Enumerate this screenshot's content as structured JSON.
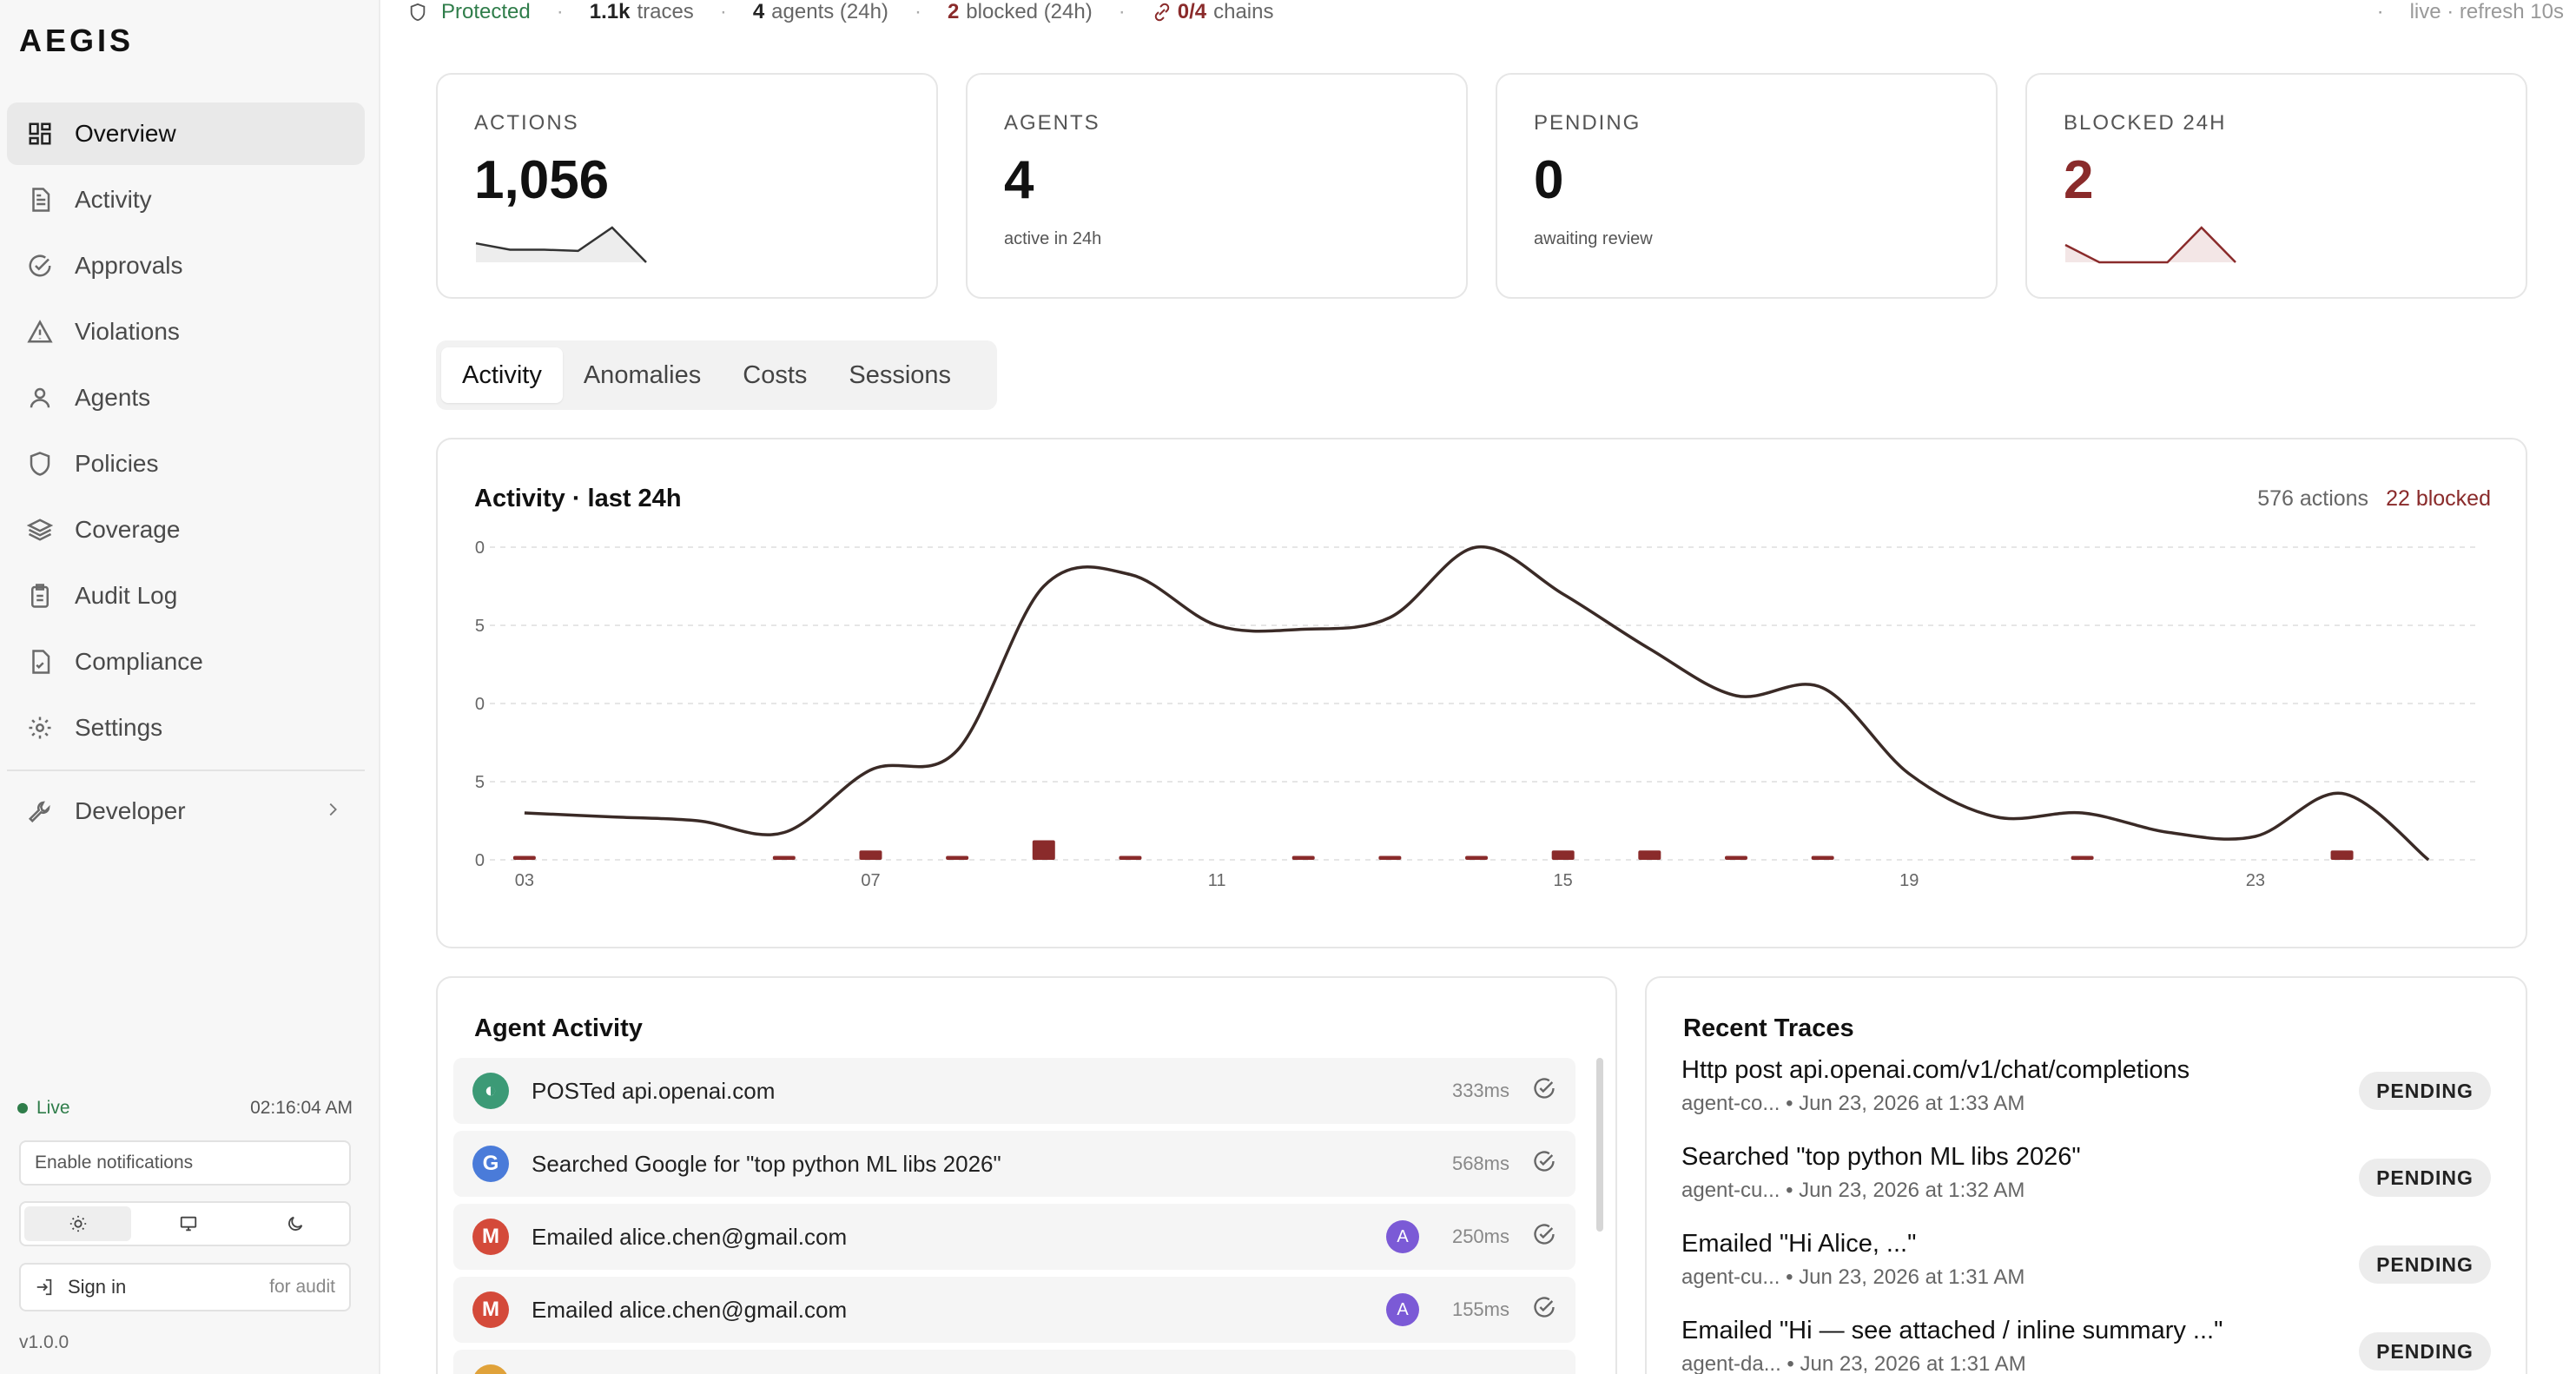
{
  "app": {
    "logo": "AEGIS",
    "version": "v1.0.0"
  },
  "sidebar": {
    "items": [
      {
        "label": "Overview",
        "icon": "grid-icon",
        "active": true
      },
      {
        "label": "Activity",
        "icon": "document-icon"
      },
      {
        "label": "Approvals",
        "icon": "check-circle-icon"
      },
      {
        "label": "Violations",
        "icon": "warning-icon"
      },
      {
        "label": "Agents",
        "icon": "user-icon"
      },
      {
        "label": "Policies",
        "icon": "shield-icon"
      },
      {
        "label": "Coverage",
        "icon": "layers-icon"
      },
      {
        "label": "Audit Log",
        "icon": "clipboard-icon"
      },
      {
        "label": "Compliance",
        "icon": "file-check-icon"
      },
      {
        "label": "Settings",
        "icon": "gear-icon"
      }
    ],
    "developer": {
      "label": "Developer",
      "icon": "wrench-icon"
    },
    "live_label": "Live",
    "clock": "02:16:04 AM",
    "notifications_label": "Enable notifications",
    "sign_in_label": "Sign in",
    "sign_in_hint": "for audit"
  },
  "statusbar": {
    "protected": "Protected",
    "traces_value": "1.1k",
    "traces_label": "traces",
    "agents_value": "4",
    "agents_label": "agents (24h)",
    "blocked_value": "2",
    "blocked_label": "blocked (24h)",
    "chains_value": "0/4",
    "chains_label": "chains",
    "refresh": "live · refresh 10s"
  },
  "stats": [
    {
      "label": "ACTIONS",
      "value": "1,056",
      "sub": "",
      "sparkline": [
        3,
        2,
        2,
        1.8,
        5.5,
        0
      ]
    },
    {
      "label": "AGENTS",
      "value": "4",
      "sub": "active in 24h"
    },
    {
      "label": "PENDING",
      "value": "0",
      "sub": "awaiting review"
    },
    {
      "label": "BLOCKED 24H",
      "value": "2",
      "sub": "",
      "sparkline": [
        2,
        0,
        0,
        0,
        4,
        0
      ]
    }
  ],
  "tabs": [
    "Activity",
    "Anomalies",
    "Costs",
    "Sessions"
  ],
  "chart": {
    "title": "Activity · last 24h",
    "actions_summary": "576 actions",
    "blocked_summary": "22 blocked"
  },
  "chart_data": {
    "type": "line",
    "ylim": [
      0,
      40
    ],
    "yticks": [
      "0",
      "5",
      "0",
      "5",
      "0"
    ],
    "xticks": [
      "03",
      "07",
      "11",
      "15",
      "19",
      "23"
    ],
    "x": [
      3,
      4,
      5,
      6,
      7,
      8,
      9,
      10,
      11,
      12,
      13,
      14,
      15,
      16,
      17,
      18,
      19,
      20,
      21,
      22,
      23,
      24,
      25
    ],
    "series": [
      {
        "values": [
          6,
          5.5,
          5,
          3.5,
          11.5,
          14,
          35,
          36.5,
          30,
          29.5,
          31,
          40,
          34,
          27,
          21,
          22,
          11,
          5.5,
          6,
          3.5,
          3,
          8.5,
          0
        ]
      },
      {
        "values": [
          0.5,
          0,
          0,
          0.5,
          1.2,
          0.5,
          2.5,
          0.5,
          0,
          0.5,
          0.5,
          0.5,
          1.2,
          1.2,
          0.5,
          0.5,
          0,
          0,
          0.5,
          0,
          0,
          1.2,
          0
        ]
      }
    ],
    "grid": true
  },
  "agent_activity": {
    "title": "Agent Activity",
    "rows": [
      {
        "icon": "openai-icon",
        "color": "#3c9a76",
        "glyph": "◐",
        "text": "POSTed api.openai.com",
        "avatar": "",
        "ms": "333ms"
      },
      {
        "icon": "google-icon",
        "color": "#4a7bd9",
        "glyph": "G",
        "text": "Searched Google for \"top python ML libs 2026\"",
        "avatar": "",
        "ms": "568ms"
      },
      {
        "icon": "gmail-icon",
        "color": "#d44a3a",
        "glyph": "M",
        "text": "Emailed alice.chen@gmail.com",
        "avatar": "A",
        "ms": "250ms"
      },
      {
        "icon": "gmail-icon",
        "color": "#d44a3a",
        "glyph": "M",
        "text": "Emailed alice.chen@gmail.com",
        "avatar": "A",
        "ms": "155ms"
      },
      {
        "icon": "agent-icon",
        "color": "#e0a23a",
        "glyph": "",
        "text": "",
        "avatar": "",
        "ms": ""
      }
    ]
  },
  "recent_traces": {
    "title": "Recent Traces",
    "rows": [
      {
        "title": "Http post api.openai.com/v1/chat/completions",
        "meta": "agent-co... • Jun 23, 2026 at 1:33 AM",
        "status": "PENDING"
      },
      {
        "title": "Searched \"top python ML libs 2026\"",
        "meta": "agent-cu... • Jun 23, 2026 at 1:32 AM",
        "status": "PENDING"
      },
      {
        "title": "Emailed \"Hi Alice, ...\"",
        "meta": "agent-cu... • Jun 23, 2026 at 1:31 AM",
        "status": "PENDING"
      },
      {
        "title": "Emailed \"Hi — see attached / inline summary ...\"",
        "meta": "agent-da... • Jun 23, 2026 at 1:31 AM",
        "status": "PENDING"
      }
    ]
  }
}
